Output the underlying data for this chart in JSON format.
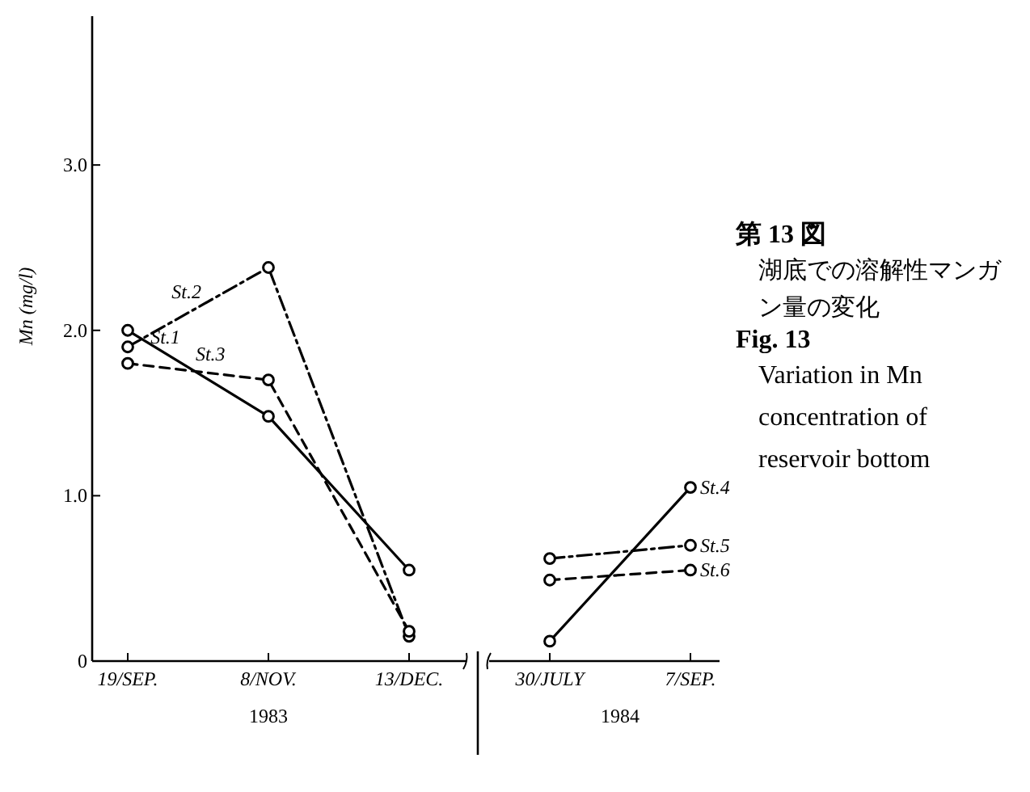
{
  "chart_data": {
    "type": "line",
    "title": "第 13 図",
    "subtitle": "湖底での溶解性マンガン量の変化",
    "ylabel": "Mn (mg/l)",
    "categories": [
      "19/SEP.",
      "8/NOV.",
      "13/DEC.",
      "30/JULY",
      "7/SEP."
    ],
    "series": [
      {
        "name": "St.1",
        "color": "#000000",
        "line_style": "solid",
        "values": [
          2.0,
          1.48,
          0.55,
          null,
          null
        ]
      },
      {
        "name": "St.2",
        "color": "#000000",
        "line_style": "dashdot",
        "values": [
          1.9,
          2.38,
          0.15,
          null,
          null
        ]
      },
      {
        "name": "St.3",
        "color": "#000000",
        "line_style": "dashed",
        "values": [
          1.8,
          1.7,
          0.18,
          null,
          null
        ]
      },
      {
        "name": "St.4",
        "color": "#000000",
        "line_style": "solid",
        "values": [
          null,
          null,
          null,
          0.12,
          1.05
        ]
      },
      {
        "name": "St.5",
        "color": "#000000",
        "line_style": "dashdot",
        "values": [
          null,
          null,
          null,
          0.62,
          0.7
        ]
      },
      {
        "name": "St.6",
        "color": "#000000",
        "line_style": "dashed",
        "values": [
          null,
          null,
          null,
          0.49,
          0.55
        ]
      }
    ],
    "ylim": [
      0,
      3.9
    ],
    "yticks": [
      0,
      {
        "value": 1,
        "label": "1.0"
      },
      {
        "value": 2,
        "label": "2.0"
      },
      {
        "value": 3,
        "label": "3.0"
      }
    ],
    "marker": "circle",
    "grid": false,
    "annotations": [
      "1983",
      "1984",
      "Fig. 13",
      "Variation in Mn concentration of reservoir bottom"
    ]
  }
}
